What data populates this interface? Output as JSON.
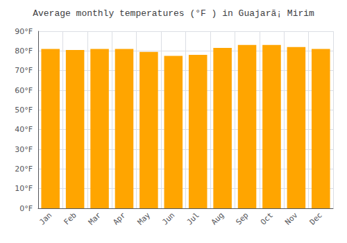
{
  "chart_data": {
    "type": "bar",
    "title": "Average monthly temperatures (°F ) in Guajarã¡ Mirim",
    "categories": [
      "Jan",
      "Feb",
      "Mar",
      "Apr",
      "May",
      "Jun",
      "Jul",
      "Aug",
      "Sep",
      "Oct",
      "Nov",
      "Dec"
    ],
    "values": [
      81,
      80.5,
      81,
      81,
      79.5,
      77.5,
      78,
      81.5,
      83,
      83,
      82,
      81
    ],
    "color": "#FFA500",
    "ylim": [
      0,
      90
    ],
    "yticks": [
      {
        "value": 0,
        "label": "0°F"
      },
      {
        "value": 10,
        "label": "10°F"
      },
      {
        "value": 20,
        "label": "20°F"
      },
      {
        "value": 30,
        "label": "30°F"
      },
      {
        "value": 40,
        "label": "40°F"
      },
      {
        "value": 50,
        "label": "50°F"
      },
      {
        "value": 60,
        "label": "60°F"
      },
      {
        "value": 70,
        "label": "70°F"
      },
      {
        "value": 80,
        "label": "80°F"
      },
      {
        "value": 90,
        "label": "90°F"
      }
    ],
    "grid": true
  }
}
